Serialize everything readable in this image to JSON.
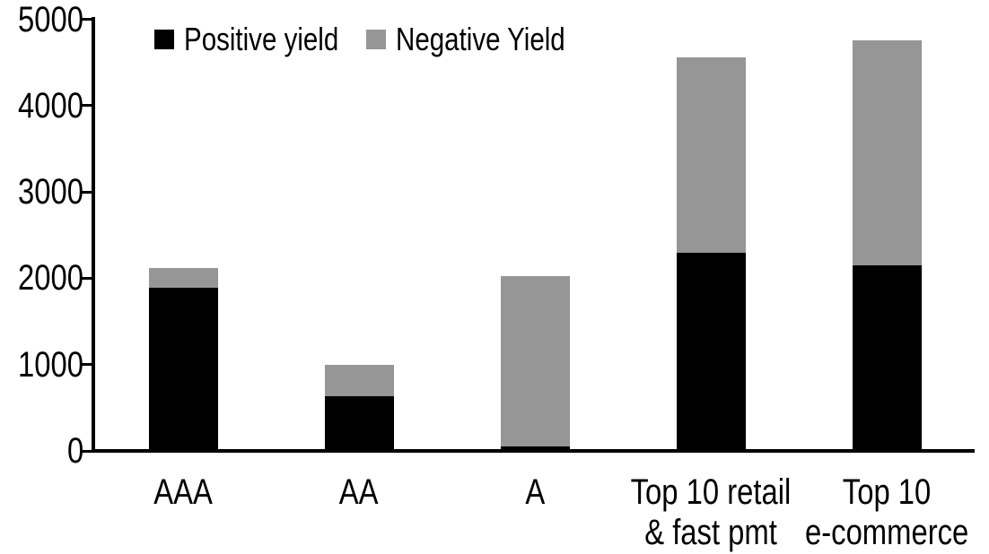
{
  "chart_data": {
    "type": "bar",
    "stacked": true,
    "title": "",
    "xlabel": "",
    "ylabel": "",
    "categories": [
      "AAA",
      "AA",
      "A",
      "Top 10 retail & fast pmt",
      "Top 10 e-commerce"
    ],
    "category_label_lines": [
      [
        "AAA"
      ],
      [
        "AA"
      ],
      [
        "A"
      ],
      [
        "Top 10 retail",
        "& fast pmt"
      ],
      [
        "Top 10",
        "e-commerce"
      ]
    ],
    "series": [
      {
        "name": "Positive yield",
        "color": "#000000",
        "values": [
          1890,
          630,
          50,
          2290,
          2150
        ]
      },
      {
        "name": "Negative Yield",
        "color": "#969696",
        "values": [
          230,
          370,
          1980,
          2270,
          2610
        ]
      }
    ],
    "stack_totals": [
      2120,
      1000,
      2030,
      4560,
      4760
    ],
    "ylim": [
      0,
      5000
    ],
    "yticks": [
      0,
      1000,
      2000,
      3000,
      4000,
      5000
    ],
    "grid": false,
    "legend_position": "top",
    "axis_color": "#000000",
    "background_color": "#ffffff"
  }
}
